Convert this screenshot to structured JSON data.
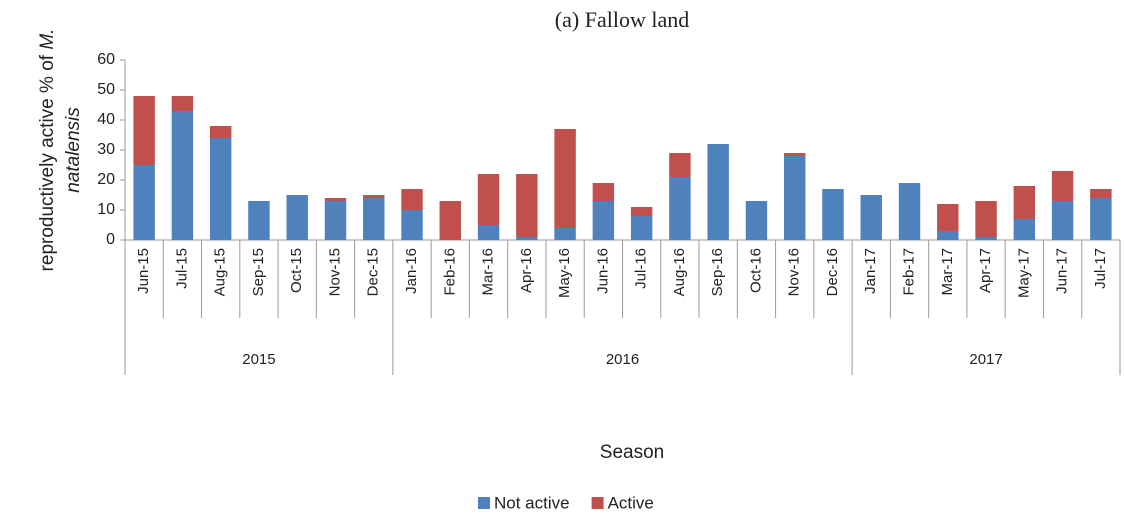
{
  "chart_data": {
    "type": "stacked_bar",
    "title": "(a)  Fallow land",
    "y_label": [
      "reproductively active % of ",
      "M.",
      "natalensis"
    ],
    "x_label": "Season",
    "categories": [
      "Jun-15",
      "Jul-15",
      "Aug-15",
      "Sep-15",
      "Oct-15",
      "Nov-15",
      "Dec-15",
      "Jan-16",
      "Feb-16",
      "Mar-16",
      "Apr-16",
      "May-16",
      "Jun-16",
      "Jul-16",
      "Aug-16",
      "Sep-16",
      "Oct-16",
      "Nov-16",
      "Dec-16",
      "Jan-17",
      "Feb-17",
      "Mar-17",
      "Apr-17",
      "May-17",
      "Jun-17",
      "Jul-17"
    ],
    "groups": [
      "2015",
      "2016",
      "2017"
    ],
    "series": [
      {
        "name": "Not active",
        "color": "#4f81bd",
        "values": [
          25,
          43,
          34,
          13,
          15,
          13,
          14,
          10,
          0,
          5,
          1,
          4,
          13,
          8,
          21,
          32,
          13,
          28,
          17,
          15,
          19,
          3,
          1,
          7,
          13,
          14
        ]
      },
      {
        "name": "Active",
        "color": "#c0504d",
        "values": [
          23,
          5,
          4,
          0,
          0,
          1,
          1,
          7,
          13,
          17,
          21,
          33,
          6,
          3,
          8,
          0,
          0,
          1,
          0,
          0,
          0,
          9,
          12,
          11,
          10,
          3
        ]
      }
    ],
    "ylim": [
      0,
      60
    ],
    "yticks": [
      0,
      10,
      20,
      30,
      40,
      50,
      60
    ],
    "legend": "bottom"
  }
}
